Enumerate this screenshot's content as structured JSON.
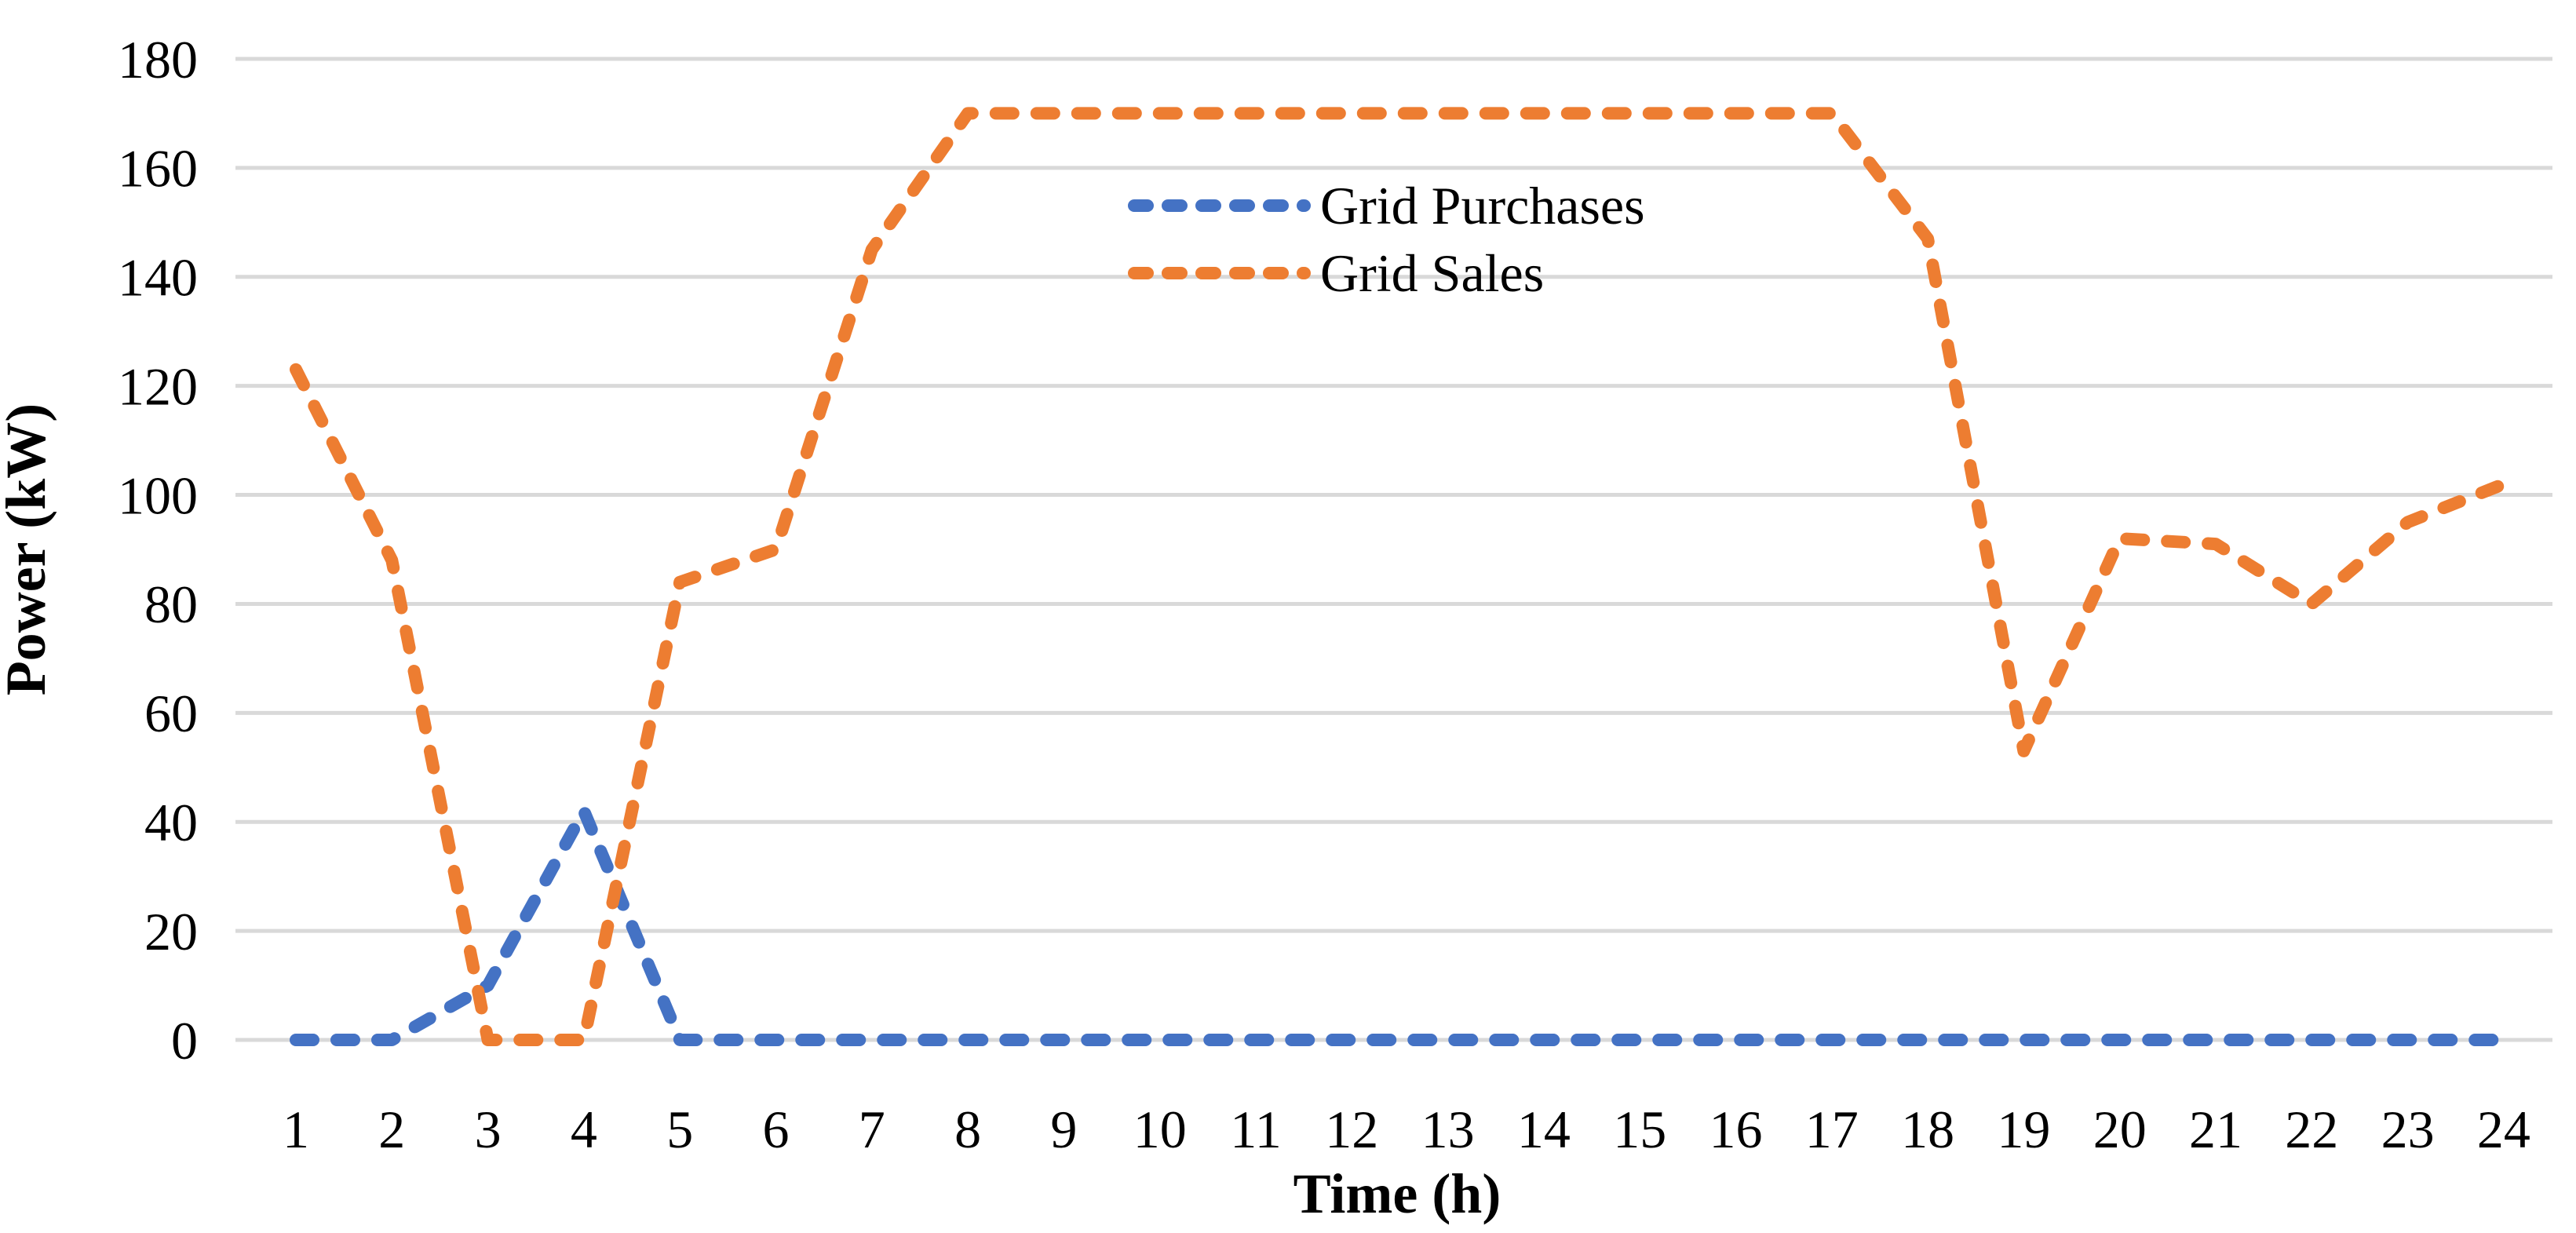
{
  "chart_data": {
    "type": "line",
    "title": "",
    "xlabel": "Time (h)",
    "ylabel": "Power (kW)",
    "x": [
      1,
      2,
      3,
      4,
      5,
      6,
      7,
      8,
      9,
      10,
      11,
      12,
      13,
      14,
      15,
      16,
      17,
      18,
      19,
      20,
      21,
      22,
      23,
      24
    ],
    "series": [
      {
        "name": "Grid Purchases",
        "color": "#4472C4",
        "line_style": "dashed",
        "values": [
          0,
          0,
          10,
          42,
          0,
          0,
          0,
          0,
          0,
          0,
          0,
          0,
          0,
          0,
          0,
          0,
          0,
          0,
          0,
          0,
          0,
          0,
          0,
          0
        ]
      },
      {
        "name": "Grid Sales",
        "color": "#ED7D31",
        "line_style": "dashed",
        "values": [
          123,
          88,
          0,
          0,
          84,
          90,
          145,
          170,
          170,
          170,
          170,
          170,
          170,
          170,
          170,
          170,
          170,
          147,
          53,
          92,
          91,
          80,
          95,
          102
        ]
      }
    ],
    "ylim": [
      0,
      180
    ],
    "ytick_step": 20,
    "yticks": [
      0,
      20,
      40,
      60,
      80,
      100,
      120,
      140,
      160,
      180
    ],
    "grid": "horizontal",
    "gridline_color": "#D9D9D9",
    "text_color": "#000000",
    "legend_position": "inside-top-center",
    "background": "#FFFFFF"
  }
}
